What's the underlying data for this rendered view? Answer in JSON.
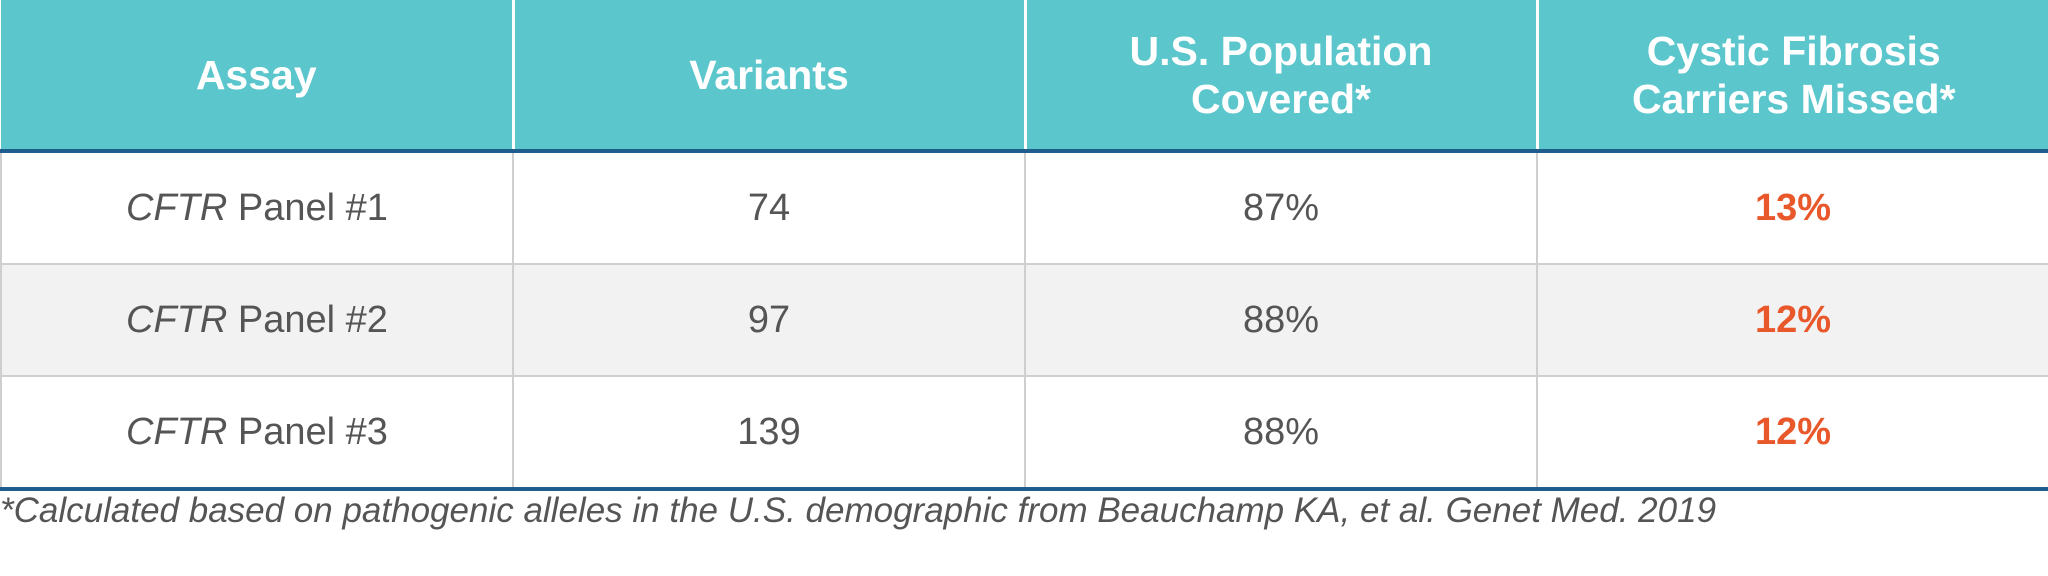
{
  "table": {
    "headers": [
      {
        "lines": [
          "Assay"
        ]
      },
      {
        "lines": [
          "Variants"
        ]
      },
      {
        "lines": [
          "U.S. Population",
          "Covered*"
        ]
      },
      {
        "lines": [
          "Cystic Fibrosis",
          "Carriers Missed*"
        ]
      }
    ],
    "rows": [
      {
        "gene": "CFTR",
        "panel": "Panel #1",
        "variants": "74",
        "covered": "87%",
        "missed": "13%"
      },
      {
        "gene": "CFTR",
        "panel": "Panel #2",
        "variants": "97",
        "covered": "88%",
        "missed": "12%"
      },
      {
        "gene": "CFTR",
        "panel": "Panel #3",
        "variants": "139",
        "covered": "88%",
        "missed": "12%"
      }
    ],
    "missed_color": "#e8582a",
    "header_color": "#5bc6cc"
  },
  "footnote": "*Calculated based on pathogenic alleles in the U.S. demographic from Beauchamp KA, et al. Genet Med. 2019"
}
